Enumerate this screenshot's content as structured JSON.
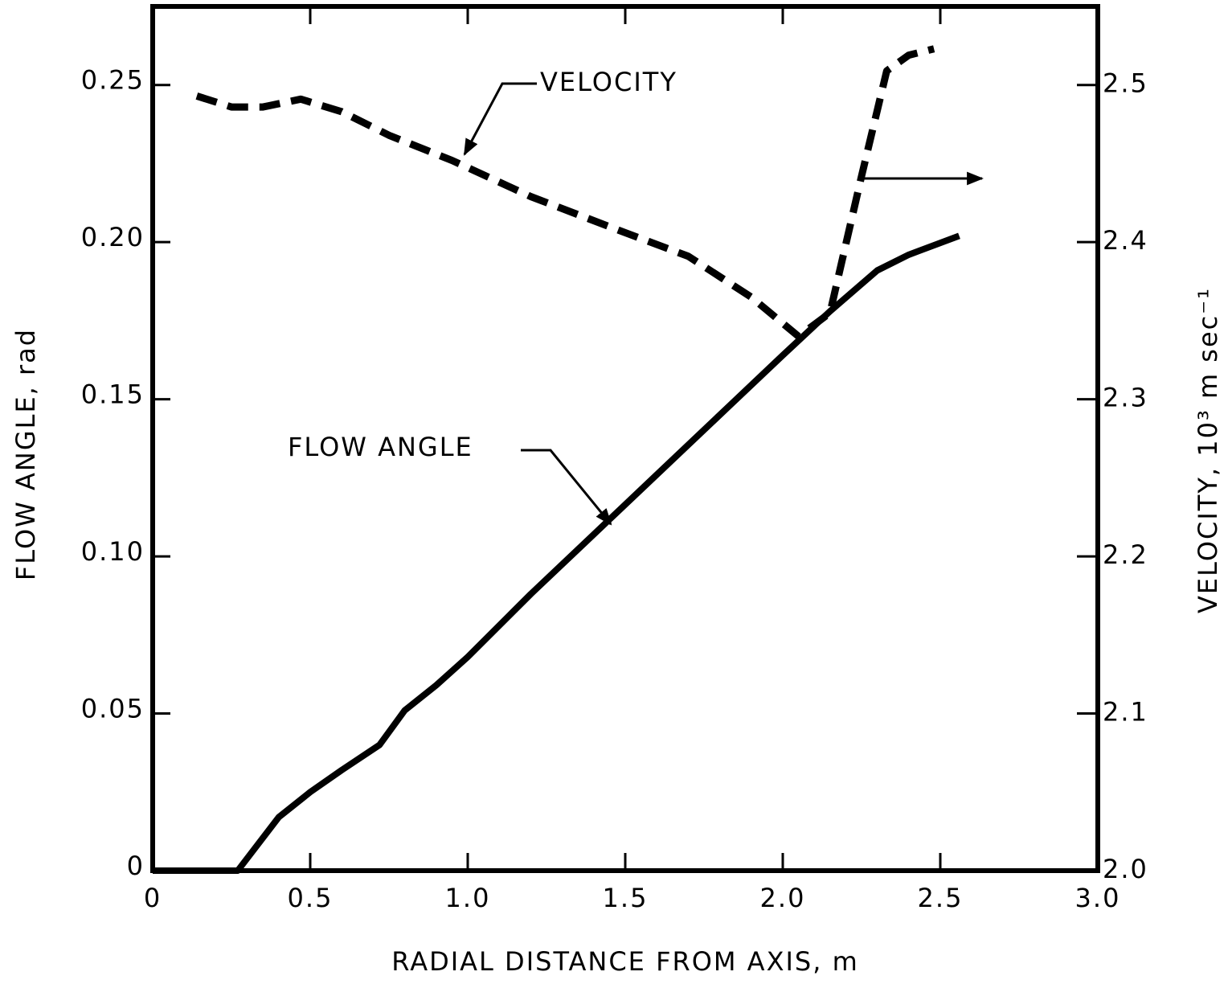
{
  "chart_data": {
    "type": "line",
    "xlabel": "RADIAL DISTANCE FROM AXIS, m",
    "ylabel": "FLOW ANGLE, rad",
    "y2label": "VELOCITY, 10³ m sec⁻¹",
    "annotations": [
      "VELOCITY",
      "FLOW ANGLE"
    ],
    "xlim": [
      0,
      3.0
    ],
    "xticks": [
      0,
      0.5,
      {
        "value": 1.0,
        "label": "1.0"
      },
      1.5,
      {
        "value": 2.0,
        "label": "2.0"
      },
      2.5,
      {
        "value": 3.0,
        "label": "3.0"
      }
    ],
    "ylim": [
      0,
      0.275
    ],
    "yticks": [
      0,
      0.05,
      {
        "value": 0.1,
        "label": "0.10"
      },
      0.15,
      {
        "value": 0.2,
        "label": "0.20"
      },
      0.25
    ],
    "y2lim": [
      2.0,
      2.55
    ],
    "y2ticks": [
      {
        "value": 2.0,
        "label": "2.0"
      },
      2.1,
      2.2,
      2.3,
      2.4,
      2.5
    ],
    "grid": false,
    "series": [
      {
        "color": "#000000",
        "style": "solid",
        "x": [
          0,
          0.27,
          0.4,
          0.5,
          0.6,
          0.72,
          0.8,
          0.9,
          1.0,
          1.2,
          1.4,
          1.6,
          1.8,
          2.0,
          2.15,
          2.3,
          2.4,
          2.56
        ],
        "values": [
          0,
          0,
          0.017,
          0.025,
          0.032,
          0.04,
          0.051,
          0.059,
          0.068,
          0.088,
          0.107,
          0.126,
          0.145,
          0.164,
          0.178,
          0.191,
          0.196,
          0.202
        ]
      },
      {
        "color": "#000000",
        "style": "dashed",
        "axis": "y2",
        "x": [
          0.14,
          0.25,
          0.35,
          0.47,
          0.6,
          0.75,
          0.95,
          1.2,
          1.5,
          1.7,
          1.9,
          2.05,
          2.15,
          2.25,
          2.33,
          2.4,
          2.48
        ],
        "values": [
          2.493,
          2.486,
          2.486,
          2.491,
          2.483,
          2.468,
          2.452,
          2.429,
          2.406,
          2.391,
          2.365,
          2.34,
          2.355,
          2.442,
          2.509,
          2.519,
          2.523
        ]
      }
    ]
  }
}
